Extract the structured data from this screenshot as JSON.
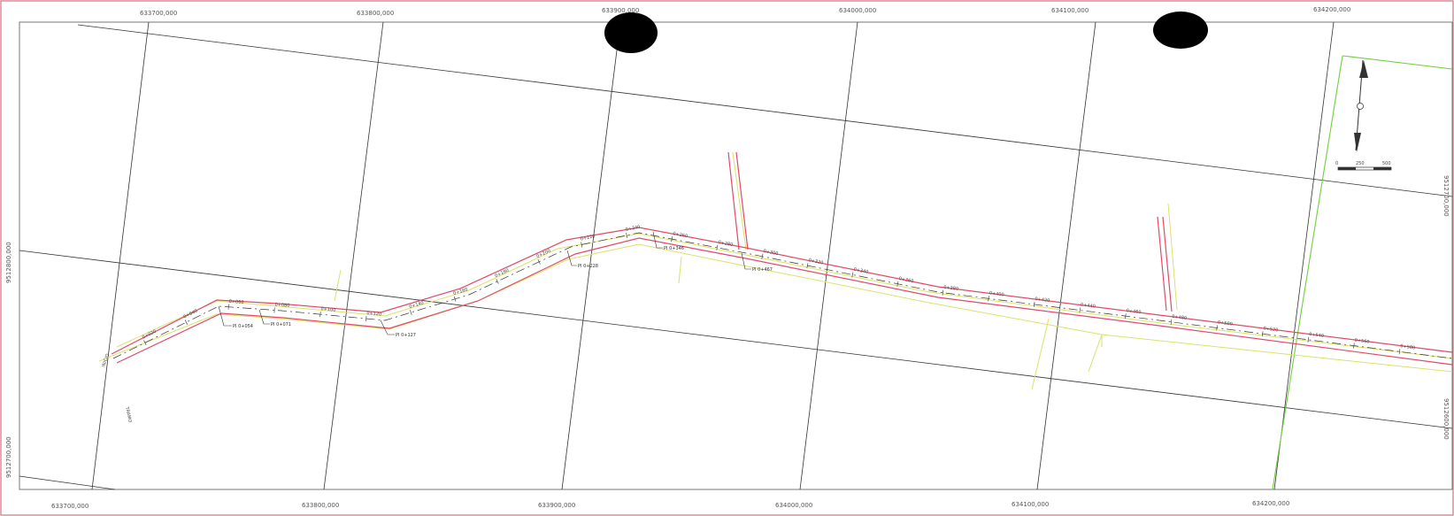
{
  "map": {
    "top_coords": [
      "633700,000",
      "633800,000",
      "633900,000",
      "634000,000",
      "634100,000",
      "634200,000"
    ],
    "bottom_coords": [
      "633700,000",
      "633800,000",
      "633900,000",
      "634000,000",
      "634100,000",
      "634200,000"
    ],
    "left_coords": [
      "9512800,000",
      "9512700,000"
    ],
    "right_coords": [
      "9512700,000",
      "9512600,000"
    ],
    "pi_labels": [
      "PI 0+054",
      "PI 0+071",
      "PI 0+127",
      "PI 0+228",
      "PI 0+346",
      "PI 0+467"
    ],
    "station_labels": [
      "0+020",
      "0+040",
      "0+060",
      "0+080",
      "0+100",
      "0+120",
      "0+140",
      "0+160",
      "0+180",
      "0+200",
      "0+220",
      "0+240",
      "0+260",
      "0+280",
      "0+300",
      "0+320",
      "0+340",
      "0+360",
      "0+380",
      "0+400",
      "0+420",
      "0+440",
      "0+460",
      "0+480",
      "0+500",
      "0+520",
      "0+540",
      "0+560",
      "0+580"
    ],
    "scale_bar": {
      "ticks": [
        "0",
        "250",
        "500"
      ]
    },
    "colors": {
      "border": "#e06a7a",
      "road": "#e04a6a",
      "green": "#6fcf3f",
      "yellow": "#d9e26a",
      "grid": "#333333"
    }
  }
}
